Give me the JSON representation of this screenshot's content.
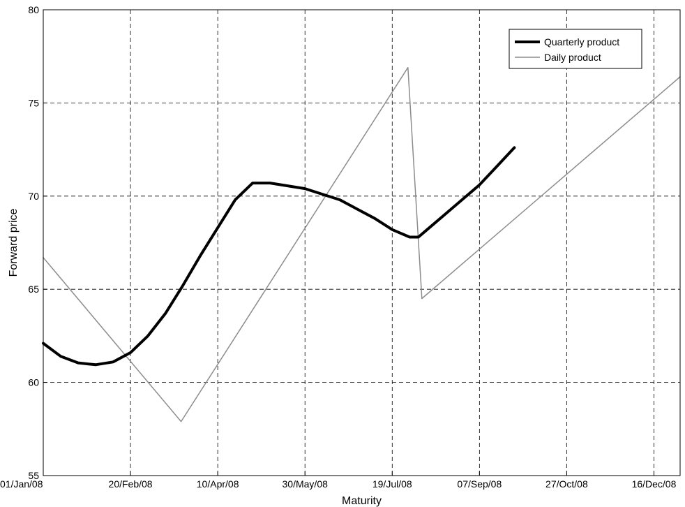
{
  "chart_data": {
    "type": "line",
    "title": "",
    "xlabel": "Maturity",
    "ylabel": "Forward price",
    "x_tick_labels": [
      "01/Jan/08",
      "20/Feb/08",
      "10/Apr/08",
      "30/May/08",
      "19/Jul/08",
      "07/Sep/08",
      "27/Oct/08",
      "16/Dec/08"
    ],
    "xlim": [
      "01/Jan/08",
      "31/Dec/08"
    ],
    "y_ticks": [
      55,
      60,
      65,
      70,
      75,
      80
    ],
    "ylim": [
      55,
      80
    ],
    "grid": true,
    "grid_style": "dashed",
    "legend_position": "top-right",
    "series": [
      {
        "name": "Quarterly product",
        "color": "#000000",
        "line": "thick",
        "x": [
          "01/Jan/08",
          "11/Jan/08",
          "21/Jan/08",
          "31/Jan/08",
          "10/Feb/08",
          "20/Feb/08",
          "01/Mar/08",
          "11/Mar/08",
          "21/Mar/08",
          "31/Mar/08",
          "10/Apr/08",
          "20/Apr/08",
          "30/Apr/08",
          "10/May/08",
          "20/May/08",
          "30/May/08",
          "09/Jun/08",
          "19/Jun/08",
          "29/Jun/08",
          "09/Jul/08",
          "19/Jul/08",
          "29/Jul/08",
          "03/Aug/08",
          "08/Aug/08",
          "18/Aug/08",
          "28/Aug/08",
          "07/Sep/08",
          "17/Sep/08",
          "27/Sep/08"
        ],
        "y": [
          62.1,
          61.4,
          61.05,
          60.95,
          61.1,
          61.6,
          62.5,
          63.7,
          65.2,
          66.8,
          68.3,
          69.8,
          70.7,
          70.7,
          70.55,
          70.4,
          70.1,
          69.8,
          69.3,
          68.8,
          68.2,
          67.8,
          67.8,
          68.2,
          69.0,
          69.8,
          70.6,
          71.6,
          72.6
        ]
      },
      {
        "name": "Daily product",
        "color": "#8c8c8c",
        "line": "thin",
        "x": [
          "01/Jan/08",
          "20/Mar/08",
          "28/Jul/08",
          "05/Aug/08",
          "31/Dec/08"
        ],
        "y": [
          66.7,
          57.9,
          76.9,
          64.5,
          76.4
        ]
      }
    ]
  }
}
